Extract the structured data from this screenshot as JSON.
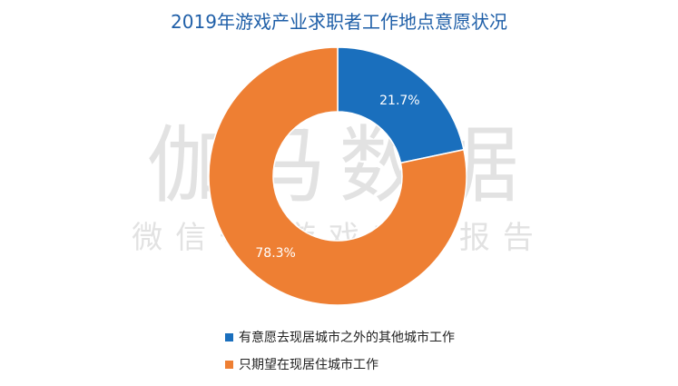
{
  "chart_data": {
    "type": "pie",
    "title": "2019年游戏产业求职者工作地点意愿状况",
    "categories": [
      "有意愿去现居城市之外的其他城市工作",
      "只期望在现居住城市工作"
    ],
    "values": [
      21.7,
      78.3
    ],
    "data_labels": [
      "21.7%",
      "78.3%"
    ],
    "colors": [
      "#1a6fbd",
      "#ee7f33"
    ],
    "donut": true,
    "legend_position": "bottom"
  },
  "watermark": {
    "main": "伽马数据",
    "sub": "微信号·游戏产业报告"
  }
}
